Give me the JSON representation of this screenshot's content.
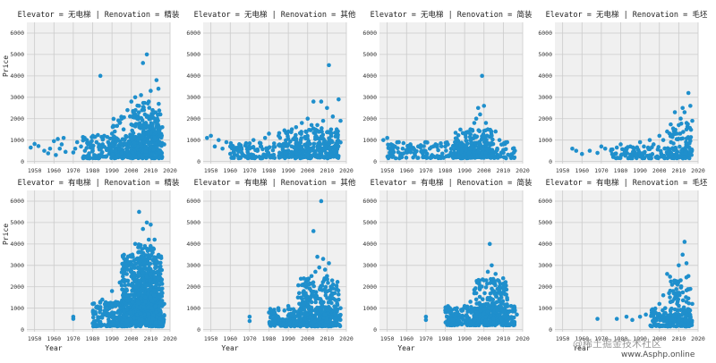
{
  "chart_data": {
    "type": "scatter",
    "layout": "facet-grid",
    "row_variable": "Elevator",
    "col_variable": "Renovation",
    "rows": [
      "无电梯",
      "有电梯"
    ],
    "cols": [
      "精装",
      "其他",
      "简装",
      "毛坯"
    ],
    "xlabel": "Year",
    "ylabel": "Price",
    "xlim": [
      1946,
      2020
    ],
    "ylim": [
      -100,
      6500
    ],
    "xticks": [
      1950,
      1960,
      1970,
      1980,
      1990,
      2000,
      2010,
      2020
    ],
    "yticks": [
      0,
      1000,
      2000,
      3000,
      4000,
      5000,
      6000
    ],
    "grid": true,
    "marker_color": "#1f8fcc",
    "facets": [
      {
        "row": 0,
        "col": 0,
        "title": "Elevator = 无电梯 | Renovation = 精装",
        "points": [
          [
            1948,
            650
          ],
          [
            1950,
            820
          ],
          [
            1952,
            720
          ],
          [
            1955,
            500
          ],
          [
            1957,
            380
          ],
          [
            1958,
            600
          ],
          [
            1960,
            950
          ],
          [
            1961,
            300
          ],
          [
            1962,
            1050
          ],
          [
            1963,
            600
          ],
          [
            1964,
            800
          ],
          [
            1965,
            1100
          ],
          [
            1966,
            450
          ],
          [
            1970,
            420
          ],
          [
            1971,
            600
          ],
          [
            1972,
            900
          ],
          [
            1974,
            700
          ],
          [
            1976,
            500
          ],
          [
            1977,
            1000
          ],
          [
            1979,
            800
          ],
          [
            1980,
            600
          ],
          [
            1982,
            900
          ],
          [
            1984,
            4000
          ],
          [
            1985,
            700
          ],
          [
            1986,
            1200
          ],
          [
            1988,
            900
          ],
          [
            1990,
            1300
          ],
          [
            1992,
            1000
          ],
          [
            1994,
            1800
          ],
          [
            1995,
            2000
          ],
          [
            1996,
            1500
          ],
          [
            1998,
            2400
          ],
          [
            2000,
            2800
          ],
          [
            2001,
            2300
          ],
          [
            2002,
            3000
          ],
          [
            2003,
            2000
          ],
          [
            2004,
            2600
          ],
          [
            2005,
            3100
          ],
          [
            2006,
            4600
          ],
          [
            2007,
            2200
          ],
          [
            2008,
            5000
          ],
          [
            2009,
            2800
          ],
          [
            2010,
            3300
          ],
          [
            2011,
            2400
          ],
          [
            2012,
            2000
          ],
          [
            2013,
            3800
          ],
          [
            2014,
            3400
          ],
          [
            2015,
            2200
          ],
          [
            2016,
            1600
          ],
          [
            2017,
            800
          ]
        ],
        "clusters": [
          [
            1975,
            2016,
            150,
            1300,
            260
          ],
          [
            1990,
            2016,
            200,
            2200,
            220
          ],
          [
            2000,
            2015,
            300,
            2800,
            120
          ]
        ]
      },
      {
        "row": 0,
        "col": 1,
        "title": "Elevator = 无电梯 | Renovation = 其他",
        "points": [
          [
            1948,
            1100
          ],
          [
            1950,
            1200
          ],
          [
            1952,
            700
          ],
          [
            1954,
            1000
          ],
          [
            1956,
            600
          ],
          [
            1958,
            900
          ],
          [
            1960,
            700
          ],
          [
            1962,
            500
          ],
          [
            1964,
            650
          ],
          [
            1966,
            400
          ],
          [
            1968,
            800
          ],
          [
            1970,
            600
          ],
          [
            1972,
            1000
          ],
          [
            1974,
            500
          ],
          [
            1976,
            700
          ],
          [
            1978,
            1100
          ],
          [
            1980,
            1300
          ],
          [
            1985,
            1200
          ],
          [
            1990,
            1400
          ],
          [
            1994,
            1600
          ],
          [
            1997,
            1800
          ],
          [
            1999,
            1400
          ],
          [
            2000,
            2000
          ],
          [
            2002,
            1700
          ],
          [
            2003,
            2800
          ],
          [
            2005,
            1700
          ],
          [
            2007,
            2800
          ],
          [
            2008,
            1900
          ],
          [
            2010,
            2500
          ],
          [
            2011,
            4500
          ],
          [
            2013,
            2100
          ],
          [
            2015,
            1500
          ],
          [
            2016,
            2900
          ],
          [
            2017,
            1900
          ]
        ],
        "clusters": [
          [
            1960,
            2017,
            150,
            900,
            220
          ],
          [
            1985,
            2016,
            200,
            1600,
            200
          ]
        ]
      },
      {
        "row": 0,
        "col": 2,
        "title": "Elevator = 无电梯 | Renovation = 简装",
        "points": [
          [
            1948,
            1000
          ],
          [
            1950,
            1100
          ],
          [
            1952,
            800
          ],
          [
            1954,
            700
          ],
          [
            1956,
            900
          ],
          [
            1958,
            600
          ],
          [
            1960,
            500
          ],
          [
            1962,
            800
          ],
          [
            1964,
            400
          ],
          [
            1966,
            700
          ],
          [
            1968,
            500
          ],
          [
            1970,
            900
          ],
          [
            1972,
            600
          ],
          [
            1975,
            800
          ],
          [
            1980,
            700
          ],
          [
            1985,
            900
          ],
          [
            1990,
            1300
          ],
          [
            1993,
            1500
          ],
          [
            1995,
            1800
          ],
          [
            1996,
            2000
          ],
          [
            1997,
            2500
          ],
          [
            1998,
            2200
          ],
          [
            1999,
            4000
          ],
          [
            2000,
            2600
          ],
          [
            2001,
            1800
          ],
          [
            2002,
            1500
          ],
          [
            2004,
            1200
          ],
          [
            2006,
            1400
          ],
          [
            2008,
            1000
          ],
          [
            2010,
            800
          ],
          [
            2012,
            900
          ],
          [
            2015,
            600
          ],
          [
            2016,
            500
          ]
        ],
        "clusters": [
          [
            1950,
            2016,
            150,
            900,
            230
          ],
          [
            1985,
            2005,
            200,
            1500,
            200
          ]
        ]
      },
      {
        "row": 0,
        "col": 3,
        "title": "Elevator = 无电梯 | Renovation = 毛坯",
        "points": [
          [
            1955,
            600
          ],
          [
            1957,
            500
          ],
          [
            1960,
            350
          ],
          [
            1964,
            500
          ],
          [
            1968,
            400
          ],
          [
            1970,
            700
          ],
          [
            1972,
            600
          ],
          [
            1975,
            500
          ],
          [
            1978,
            650
          ],
          [
            1980,
            800
          ],
          [
            1982,
            400
          ],
          [
            1985,
            700
          ],
          [
            1987,
            600
          ],
          [
            1990,
            900
          ],
          [
            1992,
            700
          ],
          [
            1995,
            1000
          ],
          [
            1997,
            800
          ],
          [
            2000,
            1200
          ],
          [
            2002,
            1000
          ],
          [
            2004,
            1400
          ],
          [
            2006,
            900
          ],
          [
            2008,
            2300
          ],
          [
            2009,
            1300
          ],
          [
            2010,
            1700
          ],
          [
            2011,
            2000
          ],
          [
            2012,
            2500
          ],
          [
            2013,
            2300
          ],
          [
            2014,
            1500
          ],
          [
            2015,
            3200
          ],
          [
            2016,
            2600
          ],
          [
            2017,
            1900
          ]
        ],
        "clusters": [
          [
            1975,
            2017,
            150,
            700,
            130
          ],
          [
            2005,
            2017,
            300,
            1800,
            70
          ]
        ]
      },
      {
        "row": 1,
        "col": 0,
        "title": "Elevator = 有电梯 | Renovation = 精装",
        "points": [
          [
            1970,
            500
          ],
          [
            1970,
            600
          ],
          [
            1980,
            1200
          ],
          [
            1985,
            1400
          ],
          [
            1990,
            1800
          ],
          [
            1994,
            2200
          ],
          [
            1996,
            2600
          ],
          [
            1998,
            2800
          ],
          [
            2000,
            3400
          ],
          [
            2001,
            2900
          ],
          [
            2002,
            4000
          ],
          [
            2003,
            3300
          ],
          [
            2004,
            5500
          ],
          [
            2005,
            3600
          ],
          [
            2006,
            4700
          ],
          [
            2007,
            3900
          ],
          [
            2008,
            5000
          ],
          [
            2009,
            4200
          ],
          [
            2010,
            4900
          ],
          [
            2011,
            3600
          ],
          [
            2012,
            4200
          ],
          [
            2013,
            3200
          ],
          [
            2014,
            2400
          ],
          [
            2015,
            2600
          ],
          [
            2016,
            1700
          ],
          [
            2017,
            1200
          ]
        ],
        "clusters": [
          [
            1980,
            2017,
            150,
            1300,
            350
          ],
          [
            1995,
            2016,
            300,
            3500,
            650
          ],
          [
            2003,
            2013,
            1000,
            4000,
            200
          ]
        ]
      },
      {
        "row": 1,
        "col": 1,
        "title": "Elevator = 有电梯 | Renovation = 其他",
        "points": [
          [
            1970,
            400
          ],
          [
            1970,
            600
          ],
          [
            1980,
            800
          ],
          [
            1985,
            900
          ],
          [
            1990,
            1100
          ],
          [
            1995,
            1500
          ],
          [
            1998,
            1800
          ],
          [
            2000,
            2100
          ],
          [
            2002,
            2500
          ],
          [
            2003,
            4600
          ],
          [
            2004,
            2700
          ],
          [
            2005,
            3400
          ],
          [
            2006,
            2900
          ],
          [
            2007,
            6000
          ],
          [
            2008,
            3300
          ],
          [
            2009,
            2800
          ],
          [
            2010,
            2500
          ],
          [
            2011,
            3100
          ],
          [
            2012,
            2000
          ],
          [
            2014,
            1700
          ],
          [
            2016,
            1400
          ],
          [
            2017,
            1000
          ]
        ],
        "clusters": [
          [
            1980,
            2017,
            150,
            1000,
            280
          ],
          [
            1995,
            2016,
            200,
            2400,
            280
          ]
        ]
      },
      {
        "row": 1,
        "col": 2,
        "title": "Elevator = 有电梯 | Renovation = 简装",
        "points": [
          [
            1970,
            450
          ],
          [
            1970,
            600
          ],
          [
            1980,
            900
          ],
          [
            1983,
            800
          ],
          [
            1986,
            1000
          ],
          [
            1990,
            1100
          ],
          [
            1993,
            1300
          ],
          [
            1996,
            1700
          ],
          [
            1998,
            2000
          ],
          [
            2000,
            2300
          ],
          [
            2002,
            2700
          ],
          [
            2003,
            4000
          ],
          [
            2004,
            3000
          ],
          [
            2005,
            2200
          ],
          [
            2006,
            2600
          ],
          [
            2007,
            1900
          ],
          [
            2008,
            2000
          ],
          [
            2010,
            1700
          ],
          [
            2012,
            1400
          ],
          [
            2014,
            1100
          ],
          [
            2016,
            900
          ],
          [
            2017,
            700
          ]
        ],
        "clusters": [
          [
            1980,
            2016,
            200,
            1100,
            300
          ],
          [
            1995,
            2012,
            300,
            2400,
            220
          ]
        ]
      },
      {
        "row": 1,
        "col": 3,
        "title": "Elevator = 有电梯 | Renovation = 毛坯",
        "points": [
          [
            1968,
            500
          ],
          [
            1978,
            500
          ],
          [
            1983,
            600
          ],
          [
            1986,
            450
          ],
          [
            1990,
            600
          ],
          [
            1993,
            700
          ],
          [
            1996,
            900
          ],
          [
            1998,
            800
          ],
          [
            2000,
            1200
          ],
          [
            2002,
            1600
          ],
          [
            2003,
            1000
          ],
          [
            2004,
            2600
          ],
          [
            2005,
            1700
          ],
          [
            2006,
            1300
          ],
          [
            2007,
            1800
          ],
          [
            2008,
            2200
          ],
          [
            2009,
            1500
          ],
          [
            2010,
            3000
          ],
          [
            2011,
            2300
          ],
          [
            2012,
            3500
          ],
          [
            2013,
            4100
          ],
          [
            2014,
            3100
          ],
          [
            2015,
            2500
          ],
          [
            2016,
            1900
          ],
          [
            2017,
            1200
          ]
        ],
        "clusters": [
          [
            1995,
            2017,
            150,
            1000,
            150
          ],
          [
            2005,
            2016,
            400,
            2600,
            90
          ]
        ]
      }
    ]
  },
  "watermark": {
    "line1": "@稀土掘金技术社区",
    "line2": "www.Asphp.online"
  }
}
